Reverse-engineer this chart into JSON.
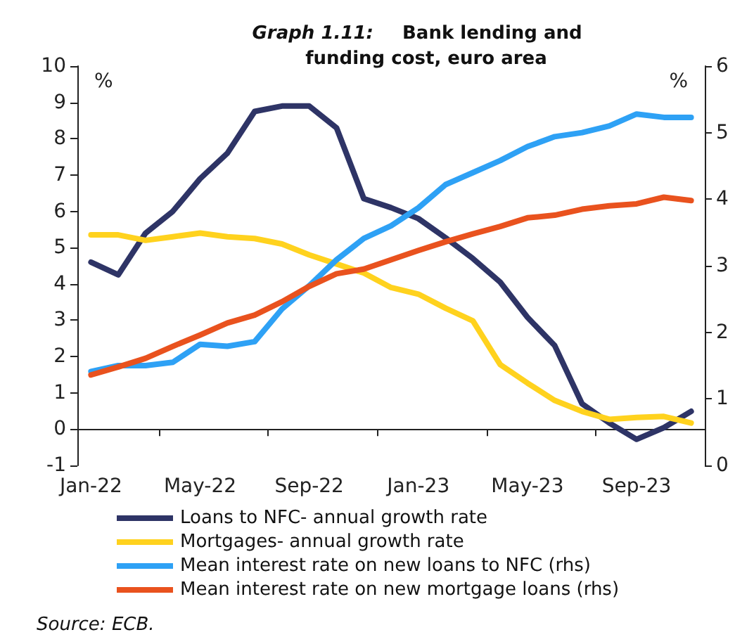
{
  "chart_data": {
    "type": "line",
    "title": "Graph 1.11: Bank lending and funding cost, euro area",
    "categories": [
      "Jan-22",
      null,
      null,
      null,
      "May-22",
      null,
      null,
      null,
      "Sep-22",
      null,
      null,
      null,
      "Jan-23",
      null,
      null,
      null,
      "May-23",
      null,
      null,
      null,
      "Sep-23",
      null,
      null
    ],
    "series": [
      {
        "name": "Loans to NFC- annual growth rate",
        "color": "#2e3466",
        "values": [
          4.6,
          4.25,
          5.4,
          6.0,
          6.9,
          7.6,
          8.75,
          8.9,
          8.9,
          8.3,
          6.35,
          6.1,
          5.8,
          5.27,
          4.7,
          4.05,
          3.08,
          2.3,
          0.7,
          0.17,
          -0.28,
          0.04,
          0.49
        ]
      },
      {
        "name": "Mortgages- annual growth rate",
        "color": "#ffd21e",
        "values": [
          5.35,
          5.35,
          5.2,
          5.3,
          5.4,
          5.3,
          5.25,
          5.1,
          4.8,
          4.55,
          4.3,
          3.9,
          3.72,
          3.33,
          2.98,
          1.78,
          1.27,
          0.79,
          0.49,
          0.27,
          0.32,
          0.35,
          0.17
        ]
      },
      {
        "name": "Mean interest rate on new loans to NFC (rhs)",
        "color": "#2ea1f5",
        "axis": "y2",
        "values": [
          1.41,
          1.5,
          1.5,
          1.55,
          1.82,
          1.79,
          1.86,
          2.35,
          2.7,
          3.09,
          3.41,
          3.6,
          3.87,
          4.22,
          4.4,
          4.58,
          4.79,
          4.94,
          5.0,
          5.1,
          5.28,
          5.23,
          5.23
        ]
      },
      {
        "name": "Mean interest rate on new mortgage loans (rhs)",
        "color": "#e9521e",
        "axis": "y2",
        "values": [
          1.36,
          1.48,
          1.61,
          1.79,
          1.96,
          2.14,
          2.26,
          2.46,
          2.69,
          2.88,
          2.95,
          3.09,
          3.23,
          3.36,
          3.48,
          3.59,
          3.72,
          3.76,
          3.85,
          3.9,
          3.93,
          4.03,
          3.98
        ]
      }
    ],
    "ylabel": "%",
    "y2label": "%",
    "ylim": [
      -1,
      10
    ],
    "yticks": [
      -1,
      0,
      1,
      2,
      3,
      4,
      5,
      6,
      7,
      8,
      9,
      10
    ],
    "y2lim": [
      0,
      6
    ],
    "y2ticks": [
      0,
      1,
      2,
      3,
      4,
      5,
      6
    ],
    "annotations": [
      "Source: ECB."
    ],
    "legend": "bottom",
    "grid": false,
    "marker": "none",
    "line_style": "solid"
  }
}
